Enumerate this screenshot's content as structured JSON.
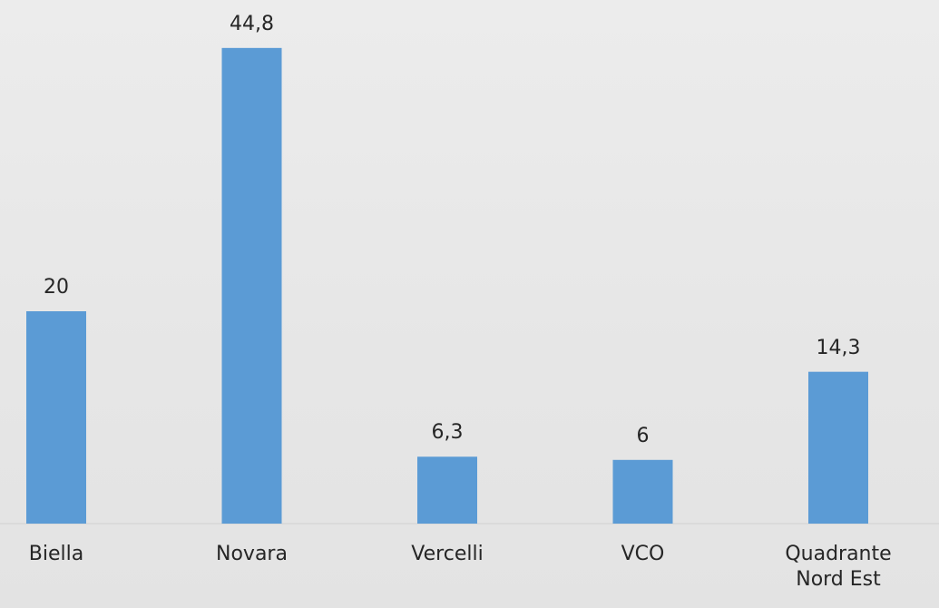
{
  "chart_data": {
    "type": "bar",
    "categories": [
      "Biella",
      "Novara",
      "Vercelli",
      "VCO",
      "Quadrante Nord Est"
    ],
    "values": [
      20,
      44.8,
      6.3,
      6,
      14.3
    ],
    "value_labels": [
      "20",
      "44,8",
      "6,3",
      "6",
      "14,3"
    ],
    "color": "#5b9bd5",
    "ylim": [
      0,
      50
    ]
  }
}
